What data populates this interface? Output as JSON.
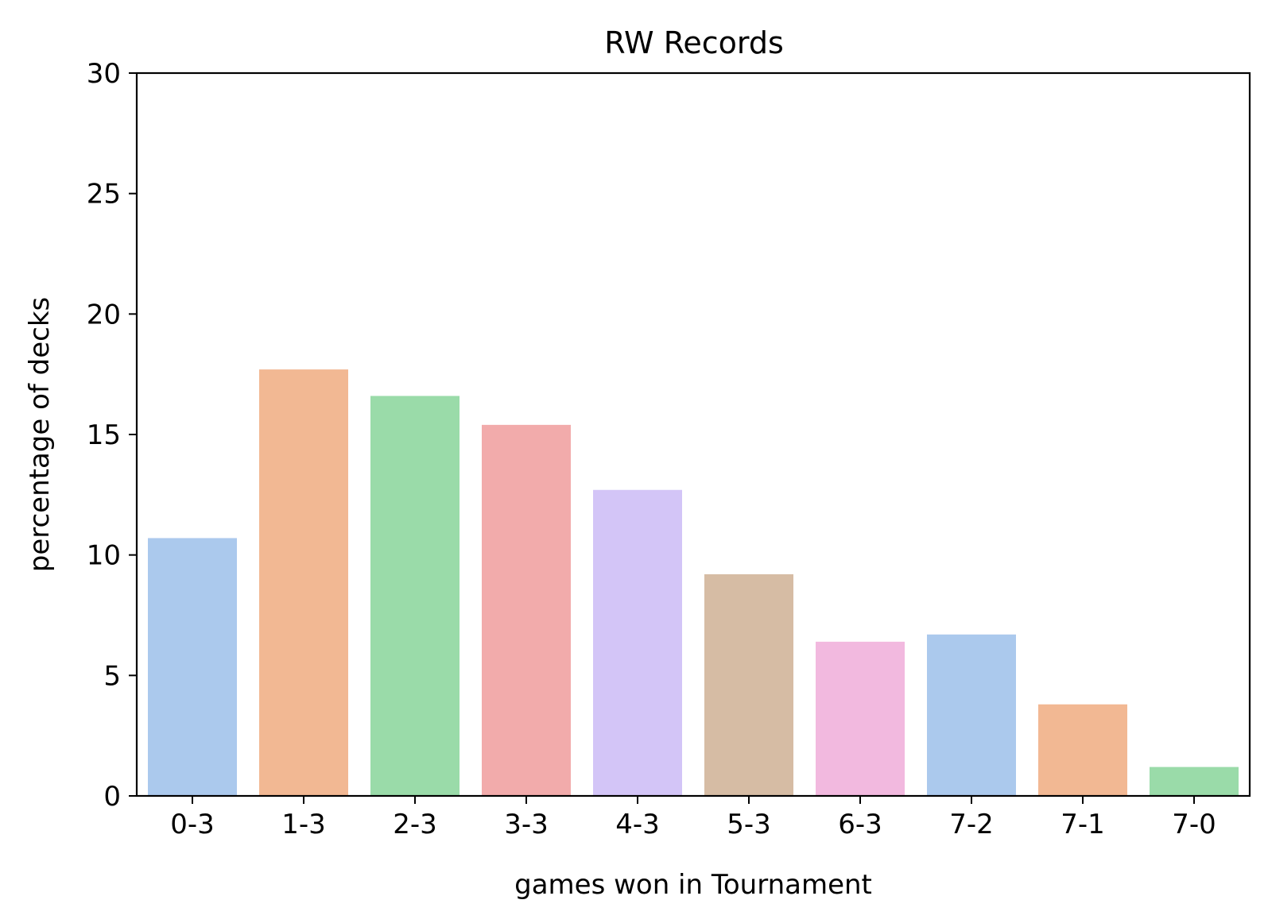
{
  "chart_data": {
    "type": "bar",
    "title": "RW Records",
    "xlabel": "games won in Tournament",
    "ylabel": "percentage of decks",
    "categories": [
      "0-3",
      "1-3",
      "2-3",
      "3-3",
      "4-3",
      "5-3",
      "6-3",
      "7-2",
      "7-1",
      "7-0"
    ],
    "values": [
      10.7,
      17.7,
      16.6,
      15.4,
      12.7,
      9.2,
      6.4,
      6.7,
      3.8,
      1.2
    ],
    "colors": [
      "#abc9ed",
      "#f2b893",
      "#9adba9",
      "#f2abab",
      "#d3c5f7",
      "#d6bca4",
      "#f2b9df",
      "#abc9ed",
      "#f2b893",
      "#9adba9"
    ],
    "ylim": [
      0,
      30
    ],
    "yticks": [
      "0",
      "5",
      "10",
      "15",
      "20",
      "25",
      "30"
    ],
    "grid": false,
    "legend": "none"
  }
}
